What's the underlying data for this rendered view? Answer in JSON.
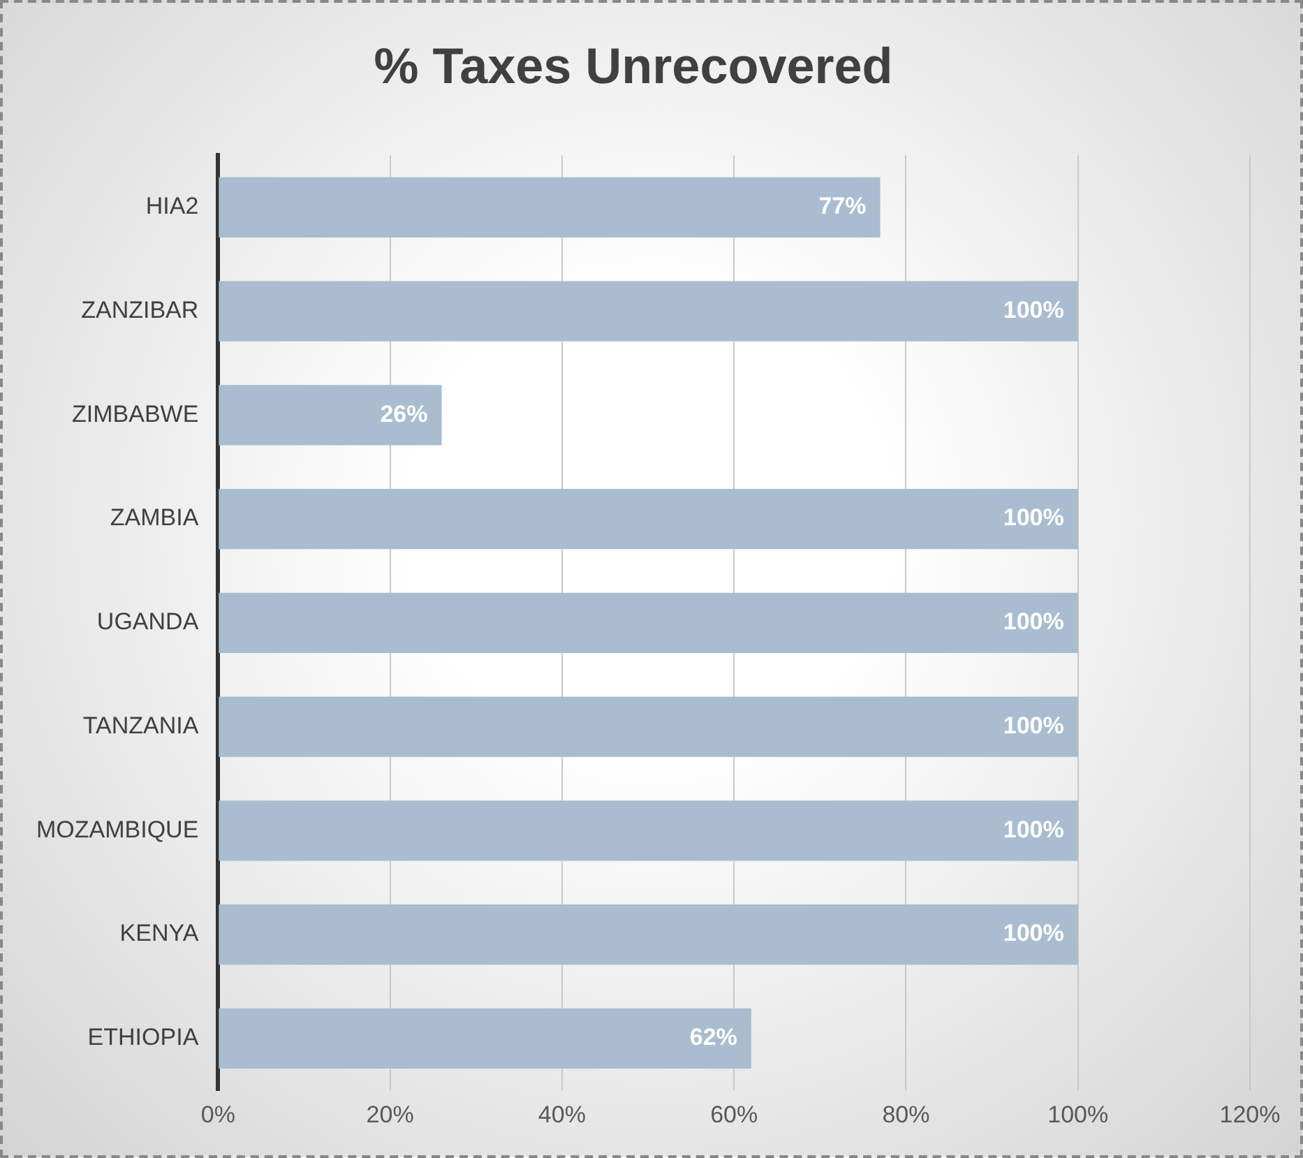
{
  "chart_data": {
    "type": "bar",
    "orientation": "horizontal",
    "title": "% Taxes Unrecovered",
    "categories": [
      "HIA2",
      "ZANZIBAR",
      "ZIMBABWE",
      "ZAMBIA",
      "UGANDA",
      "TANZANIA",
      "MOZAMBIQUE",
      "KENYA",
      "ETHIOPIA"
    ],
    "values": [
      77,
      100,
      26,
      100,
      100,
      100,
      100,
      100,
      62
    ],
    "value_labels": [
      "77%",
      "100%",
      "26%",
      "100%",
      "100%",
      "100%",
      "100%",
      "100%",
      "62%"
    ],
    "color": "#a9bcd0",
    "xlim": [
      0,
      120
    ],
    "xticks": [
      {
        "value": 0,
        "label": "0%"
      },
      {
        "value": 20,
        "label": "20%"
      },
      {
        "value": 40,
        "label": "40%"
      },
      {
        "value": 60,
        "label": "60%"
      },
      {
        "value": 80,
        "label": "80%"
      },
      {
        "value": 100,
        "label": "100%"
      },
      {
        "value": 120,
        "label": "120%"
      }
    ],
    "grid": "x",
    "legend": false
  }
}
